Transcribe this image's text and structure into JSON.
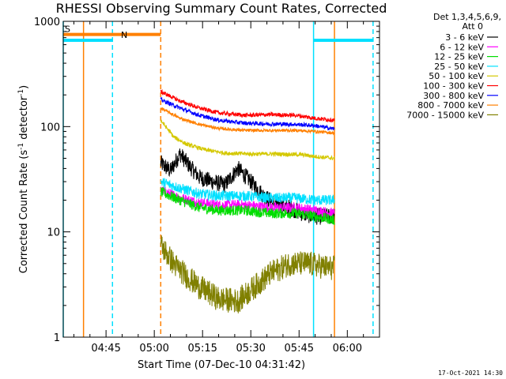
{
  "chart_data": {
    "type": "line",
    "title": "RHESSI Observing Summary Count Rates, Corrected",
    "xlabel": "Start Time (07-Dec-10 04:31:42)",
    "ylabel_main": "Corrected Count Rate (s",
    "ylabel_sup1": "-1",
    "ylabel_mid": " detector",
    "ylabel_sup2": "-1",
    "ylabel_end": ")",
    "y_scale": "log",
    "ylim": [
      1,
      1000
    ],
    "xlim": [
      "04:31:42",
      "06:10:00"
    ],
    "x_ticks": [
      "04:45",
      "05:00",
      "05:15",
      "05:30",
      "05:45",
      "06:00"
    ],
    "y_ticks": [
      "1",
      "10",
      "100",
      "1000"
    ],
    "grid": false,
    "legend_position": "right",
    "legend_header": [
      "Det 1,3,4,5,6,9,",
      "Att 0"
    ],
    "footer_date": "17-Oct-2021 14:30",
    "flags": [
      {
        "label": "S",
        "color": "#ff8000",
        "y": 750,
        "start": "04:31:42",
        "end": "05:02:00"
      },
      {
        "label": "N",
        "color": "#00e0ff",
        "y": 660,
        "start": "04:31:42",
        "end": "04:47:00"
      },
      {
        "label": "",
        "color": "#00e0ff",
        "y": 660,
        "start": "05:49:30",
        "end": "06:08:00"
      }
    ],
    "vlines": [
      {
        "time": "04:31:42",
        "color": "#00e0ff",
        "dashed": false
      },
      {
        "time": "04:38:00",
        "color": "#ff8000",
        "dashed": false
      },
      {
        "time": "04:47:00",
        "color": "#00e0ff",
        "dashed": true
      },
      {
        "time": "05:02:00",
        "color": "#ff8000",
        "dashed": true
      },
      {
        "time": "05:49:30",
        "color": "#00e0ff",
        "dashed": false
      },
      {
        "time": "05:56:00",
        "color": "#ff8000",
        "dashed": false
      },
      {
        "time": "06:08:00",
        "color": "#00e0ff",
        "dashed": true
      }
    ],
    "data_window": [
      "05:02:00",
      "05:56:00"
    ],
    "series": [
      {
        "name": "3 - 6 keV",
        "color": "#000000",
        "noise": 0.08,
        "points": [
          [
            "05:02:00",
            45
          ],
          [
            "05:05:00",
            38
          ],
          [
            "05:08:00",
            55
          ],
          [
            "05:11:00",
            42
          ],
          [
            "05:14:00",
            33
          ],
          [
            "05:18:00",
            30
          ],
          [
            "05:22:00",
            28
          ],
          [
            "05:26:00",
            40
          ],
          [
            "05:30:00",
            30
          ],
          [
            "05:34:00",
            22
          ],
          [
            "05:38:00",
            18
          ],
          [
            "05:42:00",
            17
          ],
          [
            "05:46:00",
            15
          ],
          [
            "05:50:00",
            14
          ],
          [
            "05:56:00",
            14
          ]
        ]
      },
      {
        "name": "6 - 12 keV",
        "color": "#ff00ff",
        "noise": 0.05,
        "points": [
          [
            "05:02:00",
            25
          ],
          [
            "05:08:00",
            21
          ],
          [
            "05:14:00",
            19
          ],
          [
            "05:20:00",
            18
          ],
          [
            "05:28:00",
            18
          ],
          [
            "05:36:00",
            17
          ],
          [
            "05:44:00",
            17
          ],
          [
            "05:50:00",
            16
          ],
          [
            "05:56:00",
            15
          ]
        ]
      },
      {
        "name": "12 - 25 keV",
        "color": "#00dd00",
        "noise": 0.05,
        "points": [
          [
            "05:02:00",
            24
          ],
          [
            "05:08:00",
            20
          ],
          [
            "05:14:00",
            17
          ],
          [
            "05:20:00",
            16
          ],
          [
            "05:28:00",
            16
          ],
          [
            "05:36:00",
            15
          ],
          [
            "05:44:00",
            15
          ],
          [
            "05:50:00",
            14
          ],
          [
            "05:56:00",
            13
          ]
        ]
      },
      {
        "name": "25 - 50 keV",
        "color": "#00e0ff",
        "noise": 0.05,
        "points": [
          [
            "05:02:00",
            30
          ],
          [
            "05:08:00",
            26
          ],
          [
            "05:14:00",
            23
          ],
          [
            "05:20:00",
            22
          ],
          [
            "05:28:00",
            22
          ],
          [
            "05:36:00",
            21
          ],
          [
            "05:44:00",
            21
          ],
          [
            "05:50:00",
            20
          ],
          [
            "05:56:00",
            20
          ]
        ]
      },
      {
        "name": "50 - 100 keV",
        "color": "#d4c800",
        "noise": 0.02,
        "points": [
          [
            "05:02:00",
            115
          ],
          [
            "05:06:00",
            80
          ],
          [
            "05:10:00",
            68
          ],
          [
            "05:16:00",
            60
          ],
          [
            "05:22:00",
            56
          ],
          [
            "05:30:00",
            55
          ],
          [
            "05:38:00",
            55
          ],
          [
            "05:46:00",
            54
          ],
          [
            "05:50:00",
            52
          ],
          [
            "05:56:00",
            50
          ]
        ]
      },
      {
        "name": "100 - 300 keV",
        "color": "#ff0000",
        "noise": 0.02,
        "points": [
          [
            "05:02:00",
            215
          ],
          [
            "05:08:00",
            175
          ],
          [
            "05:14:00",
            150
          ],
          [
            "05:20:00",
            135
          ],
          [
            "05:28:00",
            128
          ],
          [
            "05:36:00",
            130
          ],
          [
            "05:44:00",
            128
          ],
          [
            "05:50:00",
            120
          ],
          [
            "05:56:00",
            115
          ]
        ]
      },
      {
        "name": "300 - 800 keV",
        "color": "#0000ff",
        "noise": 0.02,
        "points": [
          [
            "05:02:00",
            180
          ],
          [
            "05:08:00",
            150
          ],
          [
            "05:14:00",
            128
          ],
          [
            "05:20:00",
            115
          ],
          [
            "05:28:00",
            108
          ],
          [
            "05:36:00",
            106
          ],
          [
            "05:44:00",
            105
          ],
          [
            "05:50:00",
            102
          ],
          [
            "05:56:00",
            95
          ]
        ]
      },
      {
        "name": "800 - 7000 keV",
        "color": "#ff8000",
        "noise": 0.015,
        "points": [
          [
            "05:02:00",
            150
          ],
          [
            "05:08:00",
            120
          ],
          [
            "05:14:00",
            105
          ],
          [
            "05:20:00",
            96
          ],
          [
            "05:28:00",
            92
          ],
          [
            "05:36:00",
            92
          ],
          [
            "05:44:00",
            92
          ],
          [
            "05:50:00",
            90
          ],
          [
            "05:56:00",
            87
          ]
        ]
      },
      {
        "name": "7000 - 15000 keV",
        "color": "#808000",
        "noise": 0.12,
        "points": [
          [
            "05:02:00",
            7.5
          ],
          [
            "05:06:00",
            5
          ],
          [
            "05:10:00",
            3.8
          ],
          [
            "05:14:00",
            3
          ],
          [
            "05:20:00",
            2.3
          ],
          [
            "05:26:00",
            2.2
          ],
          [
            "05:30:00",
            2.8
          ],
          [
            "05:36:00",
            4
          ],
          [
            "05:42:00",
            5
          ],
          [
            "05:48:00",
            5
          ],
          [
            "05:52:00",
            4.7
          ],
          [
            "05:56:00",
            4.5
          ]
        ]
      }
    ]
  }
}
